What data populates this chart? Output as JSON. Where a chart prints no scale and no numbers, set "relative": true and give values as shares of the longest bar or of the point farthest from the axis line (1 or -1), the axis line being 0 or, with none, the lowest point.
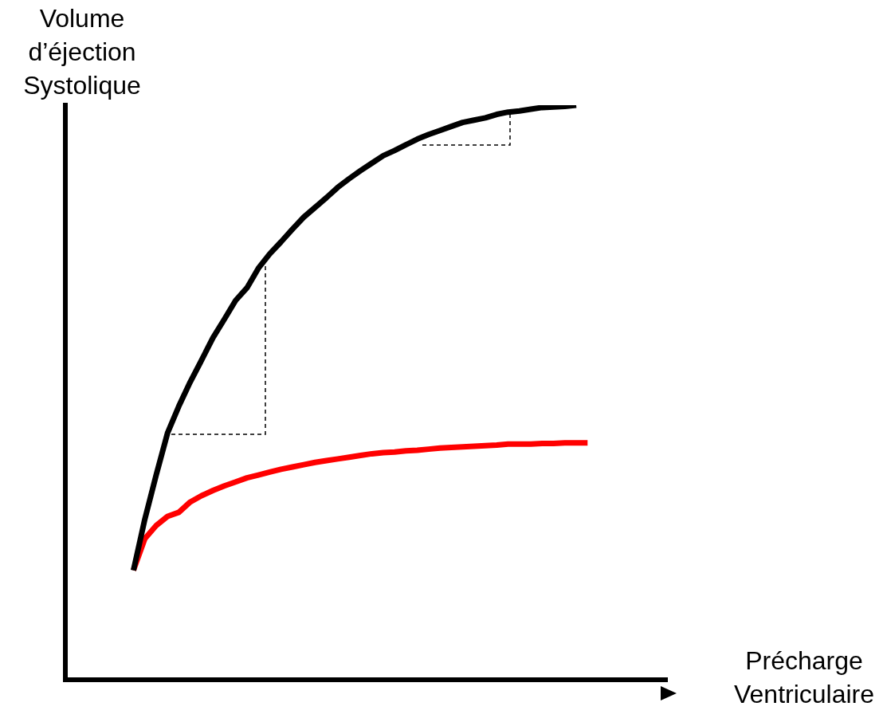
{
  "chart_data": {
    "type": "line",
    "relative": true,
    "ylabel": "Volume\nd’éjection\nSystolique",
    "xlabel": "Précharge\nVentriculaire",
    "legend": false,
    "grid": false,
    "marker": "none",
    "categories": [
      null,
      null,
      null,
      null,
      null,
      null,
      null,
      null,
      null,
      null,
      null,
      null,
      null,
      null,
      null,
      null,
      null,
      null,
      null,
      null,
      null,
      null,
      null,
      null,
      null,
      null,
      null,
      null,
      null,
      null,
      null,
      null,
      null,
      null,
      null,
      null,
      null,
      null,
      null,
      null,
      null,
      null,
      null,
      null,
      null,
      null,
      null,
      null,
      null,
      null,
      null,
      null,
      null,
      null
    ],
    "series": [
      {
        "color": "#000000",
        "values": [
          null,
          null,
          null,
          null,
          null,
          null,
          0.19,
          0.279,
          0.356,
          0.429,
          0.476,
          0.518,
          0.556,
          0.595,
          0.627,
          0.66,
          0.682,
          0.716,
          0.741,
          0.762,
          0.784,
          0.805,
          0.822,
          0.839,
          0.857,
          0.872,
          0.886,
          0.899,
          0.912,
          0.921,
          0.931,
          0.941,
          0.949,
          0.956,
          0.963,
          0.97,
          0.974,
          0.978,
          0.984,
          0.988,
          0.99,
          0.993,
          0.996,
          0.997,
          0.998,
          1.0,
          null,
          null,
          null,
          null,
          null,
          null,
          null,
          null
        ]
      },
      {
        "color": "#ff0000",
        "values": [
          null,
          null,
          null,
          null,
          null,
          null,
          0.19,
          0.245,
          0.268,
          0.284,
          0.291,
          0.309,
          0.32,
          0.329,
          0.337,
          0.344,
          0.351,
          0.356,
          0.361,
          0.366,
          0.37,
          0.374,
          0.378,
          0.381,
          0.384,
          0.387,
          0.39,
          0.393,
          0.395,
          0.396,
          0.398,
          0.399,
          0.401,
          0.403,
          0.404,
          0.405,
          0.406,
          0.407,
          0.408,
          0.41,
          0.41,
          0.41,
          0.411,
          0.411,
          0.412,
          0.412,
          0.412,
          null,
          null,
          null,
          null,
          null,
          null,
          null
        ]
      }
    ]
  }
}
